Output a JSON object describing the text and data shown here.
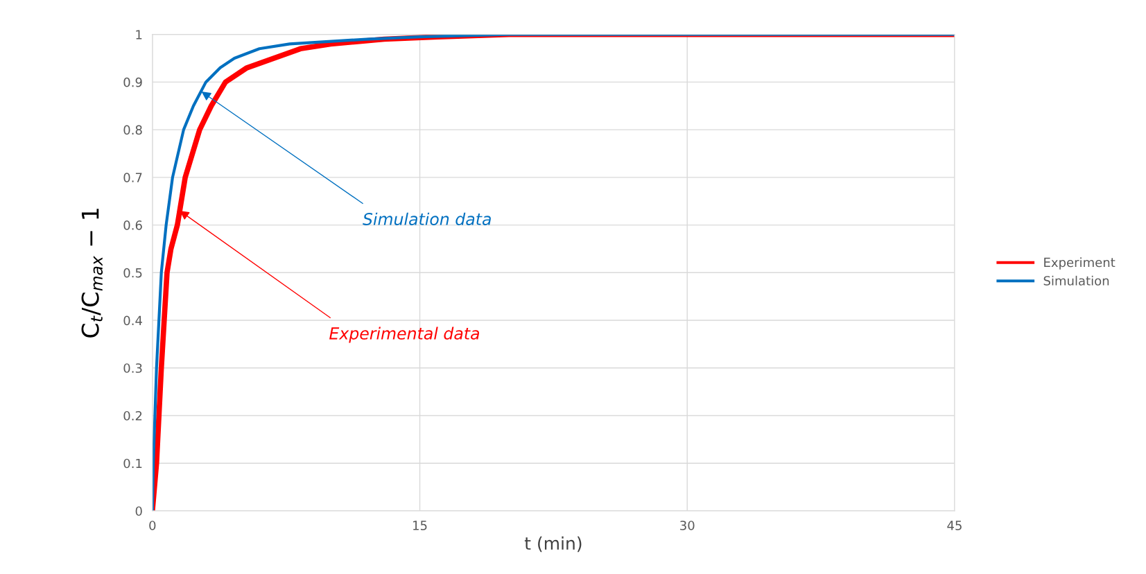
{
  "chart_data": {
    "type": "line",
    "xlabel": "t (min)",
    "ylabel": "C$_{t}$/C$_{max}$ − 1",
    "xlim": [
      0,
      45
    ],
    "xticks": [
      0,
      15,
      30,
      45
    ],
    "ylim": [
      0,
      1
    ],
    "yticks": [
      0,
      0.1,
      0.2,
      0.3,
      0.4,
      0.5,
      0.6,
      0.7,
      0.8,
      0.9,
      1
    ],
    "grid": true,
    "legend": "right",
    "marker": "none",
    "line_style": "solid",
    "series": [
      {
        "name": "Experiment",
        "color": "#ff0000",
        "x": [
          0,
          0.23,
          0.5,
          0.82,
          1.04,
          1.4,
          1.84,
          2.65,
          3.3,
          4.1,
          5.3,
          6.8,
          8.3,
          10,
          13,
          16,
          20,
          45
        ],
        "values": [
          0,
          0.1,
          0.3,
          0.5,
          0.55,
          0.6,
          0.7,
          0.8,
          0.85,
          0.9,
          0.93,
          0.95,
          0.97,
          0.98,
          0.99,
          0.995,
          1,
          1
        ]
      },
      {
        "name": "Simulation",
        "color": "#0070c0",
        "x": [
          0,
          0.05,
          0.23,
          0.5,
          0.77,
          1.13,
          1.75,
          2.3,
          3.0,
          3.8,
          4.6,
          6,
          7.7,
          12,
          15,
          20,
          45
        ],
        "values": [
          0,
          0.1,
          0.3,
          0.5,
          0.6,
          0.7,
          0.8,
          0.85,
          0.9,
          0.93,
          0.95,
          0.97,
          0.98,
          0.99,
          0.995,
          1,
          1
        ]
      }
    ],
    "annotations": [
      {
        "text": "Simulation data",
        "x": 2.75,
        "y": 0.88
      },
      {
        "text": "Experimental data",
        "x": 1.53,
        "y": 0.63
      }
    ]
  }
}
